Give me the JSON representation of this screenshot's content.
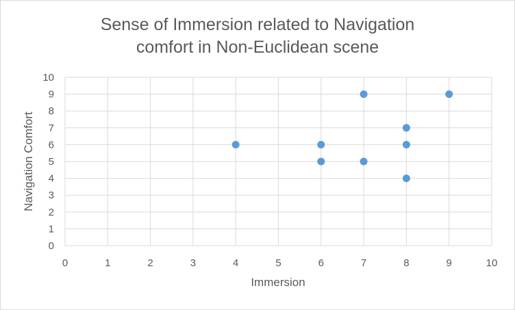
{
  "chart_data": {
    "type": "scatter",
    "title_lines": [
      "Sense of Immersion related to Navigation",
      "comfort in Non-Euclidean scene"
    ],
    "xlabel": "Immersion",
    "ylabel": "Navigation Comfort",
    "xlim": [
      0,
      10
    ],
    "ylim": [
      0,
      10
    ],
    "x_ticks": [
      0,
      1,
      2,
      3,
      4,
      5,
      6,
      7,
      8,
      9,
      10
    ],
    "y_ticks": [
      0,
      1,
      2,
      3,
      4,
      5,
      6,
      7,
      8,
      9,
      10
    ],
    "grid": true,
    "legend": "none",
    "points": [
      {
        "x": 4,
        "y": 6
      },
      {
        "x": 6,
        "y": 6
      },
      {
        "x": 6,
        "y": 5
      },
      {
        "x": 7,
        "y": 9
      },
      {
        "x": 7,
        "y": 5
      },
      {
        "x": 8,
        "y": 7
      },
      {
        "x": 8,
        "y": 6
      },
      {
        "x": 8,
        "y": 4
      },
      {
        "x": 9,
        "y": 9
      }
    ],
    "marker_color": "#5b9bd5",
    "grid_color": "#d9d9d9"
  }
}
